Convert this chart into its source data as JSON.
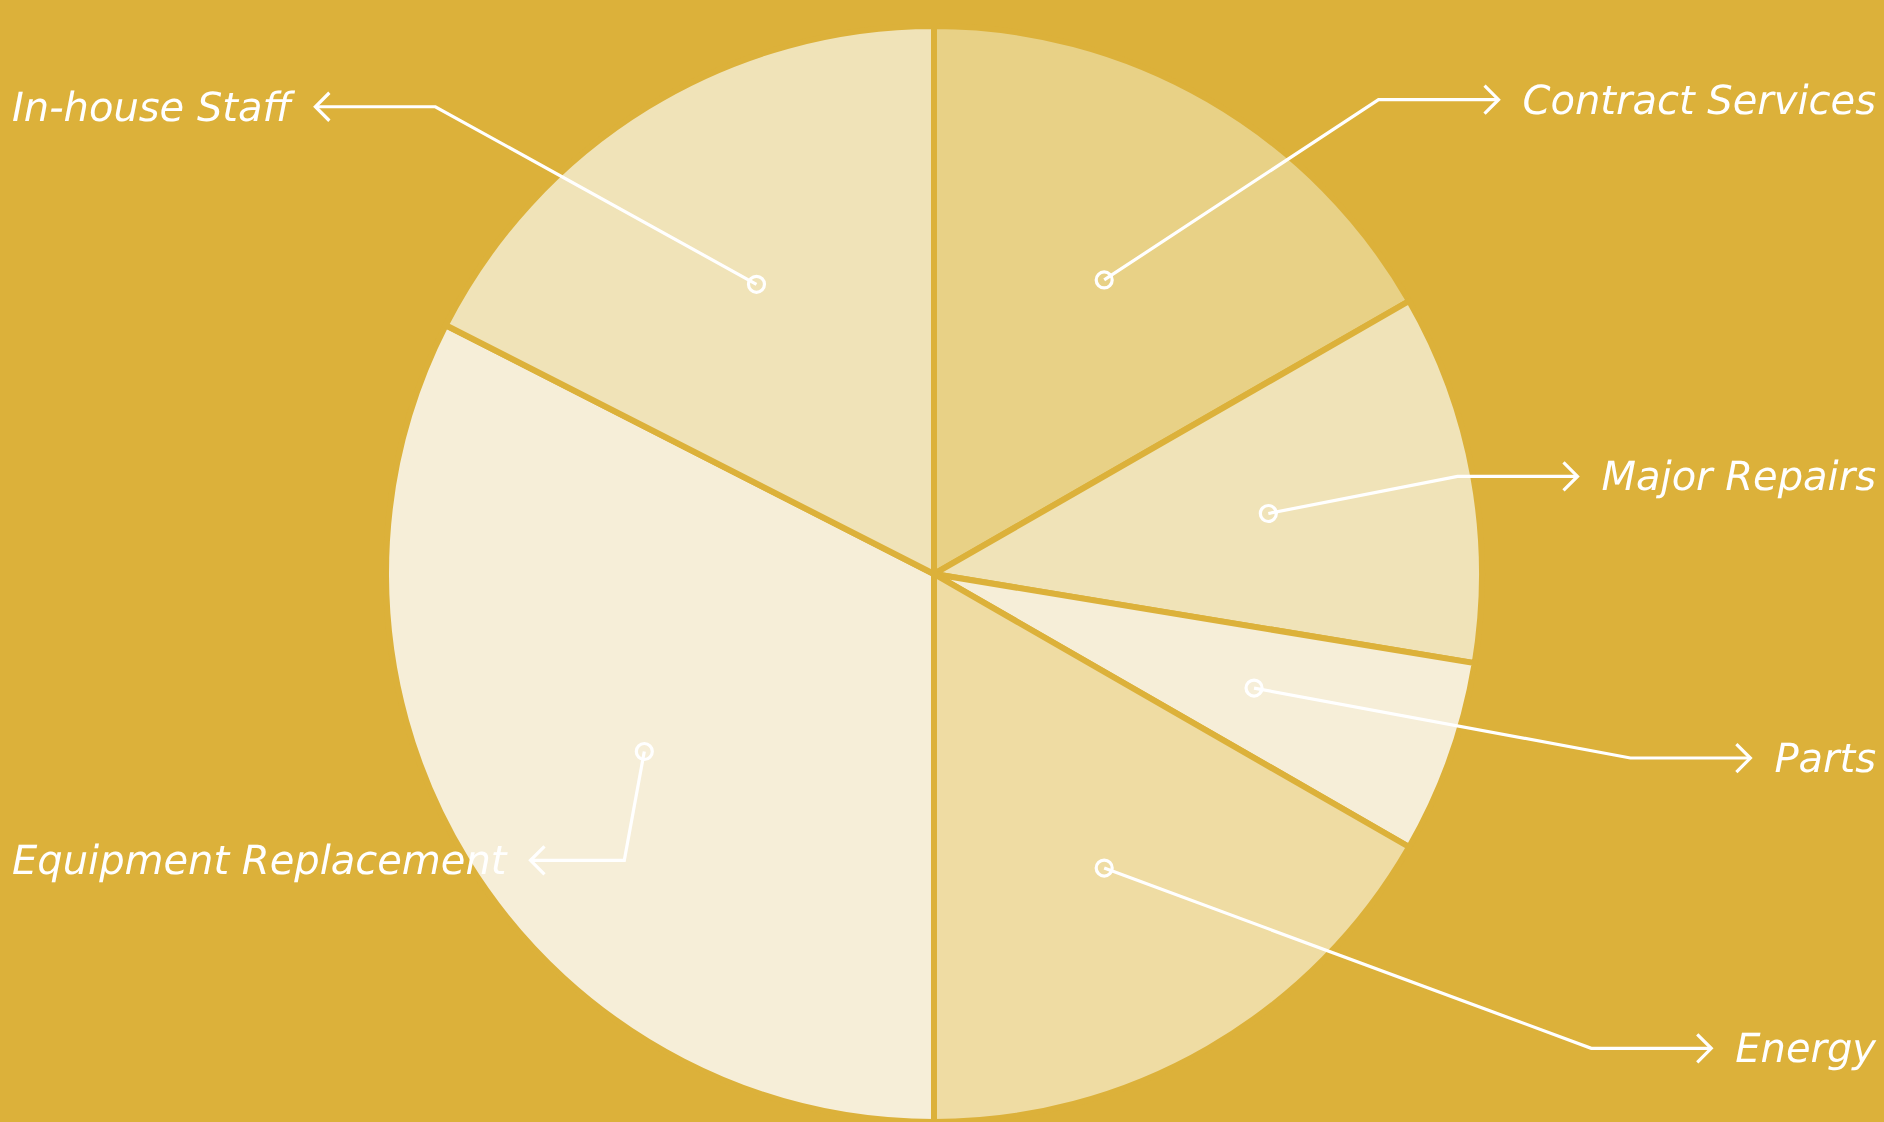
{
  "chart_data": {
    "type": "pie",
    "categories": [
      "Contract Services",
      "Major Repairs",
      "Parts",
      "Energy",
      "Equipment Replacement",
      "In-house Staff"
    ],
    "values": [
      16.7,
      10.9,
      5.7,
      16.7,
      32.5,
      17.5
    ],
    "colors": [
      "#e8d186",
      "#f0e3b8",
      "#f6eed8",
      "#efdca3",
      "#f6eed8",
      "#f0e3b8"
    ]
  }
}
